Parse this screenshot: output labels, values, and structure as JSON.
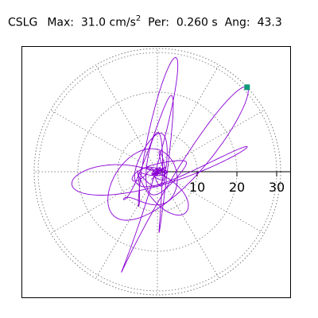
{
  "header": {
    "station": "CSLG",
    "max_label": "Max:",
    "max_value": "31.0",
    "max_unit": "cm/s",
    "max_unit_exp": "2",
    "per_label": "Per:",
    "per_value": "0.260 s",
    "ang_label": "Ang:",
    "ang_value": "43.3"
  },
  "chart_data": {
    "type": "polar-orbit",
    "title": "",
    "radial_unit": "cm/s^2",
    "rlim": [
      0,
      31.0
    ],
    "radial_ticks": [
      10,
      20,
      30
    ],
    "radial_tick_labels": [
      "10",
      "20",
      "30"
    ],
    "angular_grid_step_deg": 30,
    "grid": true,
    "grid_style": "dotted",
    "trace_color": "#8a00d4",
    "marker_color": "#0f9a7a",
    "axis_color": "#000000",
    "max_point": {
      "amplitude": 31.0,
      "angle_deg": 43.3
    },
    "period_s": 0.26
  }
}
